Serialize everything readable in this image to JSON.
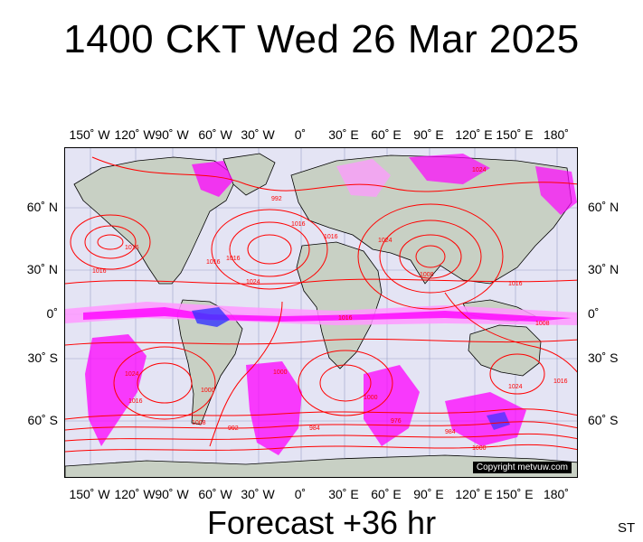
{
  "title": "1400 CKT Wed 26 Mar 2025",
  "footer": "Forecast +36 hr",
  "corner_label": "ST",
  "copyright": "Copyright metvuw.com",
  "lon_labels": [
    "150˚ W",
    "120˚ W",
    "90˚ W",
    "60˚ W",
    "30˚ W",
    "0˚",
    "30˚ E",
    "60˚ E",
    "90˚ E",
    "120˚ E",
    "150˚ E",
    "180˚"
  ],
  "lat_labels_left": [
    "60˚ N",
    "30˚ N",
    "0˚",
    "30˚ S",
    "60˚ S"
  ],
  "lat_labels_right": [
    "60˚ N",
    "30˚ N",
    "0˚",
    "30˚ S",
    "60˚ S"
  ],
  "isobar_labels": [
    "1024",
    "992",
    "1016",
    "1016",
    "1024",
    "1016",
    "1016",
    "1008",
    "1008",
    "1016",
    "1016",
    "1016",
    "1024",
    "1016",
    "1024",
    "992",
    "1000",
    "1000",
    "984",
    "984",
    "976",
    "1000",
    "1000",
    "1008",
    "1016",
    "1024",
    "1016"
  ],
  "colors": {
    "ocean": "#e4e4f4",
    "land": "#c8d0c4",
    "isobar": "#ff0000",
    "precip_heavy": "#ff00ff",
    "precip_light": "#ff99ff",
    "precip_core": "#3333ff"
  }
}
